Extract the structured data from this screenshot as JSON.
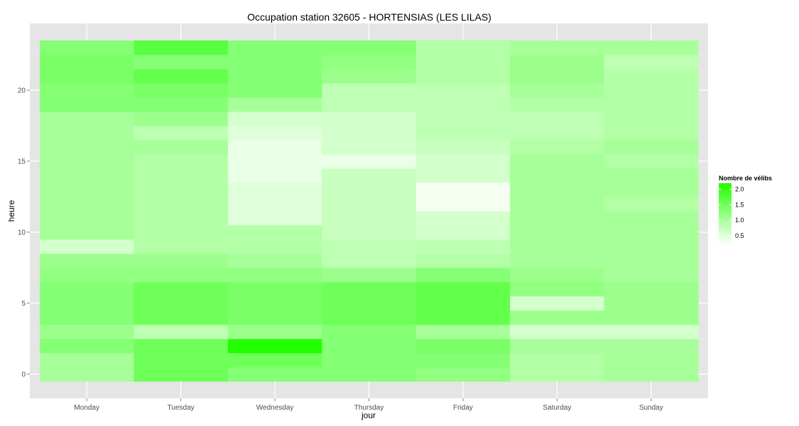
{
  "chart_data": {
    "type": "heatmap",
    "title": "Occupation station 32605 - HORTENSIAS (LES LILAS)",
    "xlabel": "jour",
    "ylabel": "heure",
    "x_categories": [
      "Monday",
      "Tuesday",
      "Wednesday",
      "Thursday",
      "Friday",
      "Saturday",
      "Sunday"
    ],
    "y_ticks": [
      0,
      5,
      10,
      15,
      20
    ],
    "y_range": [
      -0.5,
      23.5
    ],
    "grid": true,
    "legend": {
      "title": "Nombre de vélibs",
      "placement": "right",
      "ticks": [
        0.5,
        1.0,
        1.5,
        2.0
      ],
      "tick_labels": [
        "0.5",
        "1.0",
        "1.5",
        "2.0"
      ],
      "range": [
        0.2,
        2.2
      ],
      "color_low": "#ffffff",
      "color_high": "#22ff00"
    },
    "panel_background": "#e5e5e5",
    "values": [
      [
        1.0,
        1.5,
        1.3,
        1.3,
        1.2,
        0.9,
        1.0
      ],
      [
        1.0,
        1.5,
        1.5,
        1.3,
        1.3,
        0.9,
        1.0
      ],
      [
        1.3,
        1.5,
        2.2,
        1.3,
        1.4,
        1.0,
        1.0
      ],
      [
        1.1,
        0.8,
        1.1,
        1.3,
        1.0,
        0.6,
        0.6
      ],
      [
        1.3,
        1.5,
        1.4,
        1.5,
        1.6,
        1.1,
        1.1
      ],
      [
        1.3,
        1.5,
        1.4,
        1.5,
        1.6,
        0.6,
        1.1
      ],
      [
        1.3,
        1.5,
        1.4,
        1.5,
        1.6,
        1.2,
        1.1
      ],
      [
        1.2,
        1.2,
        1.2,
        1.1,
        1.3,
        1.1,
        1.0
      ],
      [
        1.1,
        1.1,
        1.0,
        0.8,
        0.9,
        1.0,
        1.0
      ],
      [
        0.6,
        0.9,
        0.9,
        0.8,
        0.8,
        1.0,
        1.0
      ],
      [
        1.0,
        0.9,
        0.9,
        0.7,
        0.6,
        1.0,
        1.0
      ],
      [
        1.0,
        0.9,
        0.5,
        0.7,
        0.6,
        1.0,
        1.0
      ],
      [
        1.0,
        0.9,
        0.5,
        0.7,
        0.3,
        1.0,
        0.9
      ],
      [
        1.0,
        0.9,
        0.5,
        0.7,
        0.3,
        1.0,
        1.0
      ],
      [
        1.0,
        0.9,
        0.4,
        0.7,
        0.6,
        1.0,
        1.0
      ],
      [
        1.0,
        0.9,
        0.4,
        0.4,
        0.6,
        1.0,
        0.9
      ],
      [
        1.0,
        1.0,
        0.4,
        0.6,
        0.7,
        0.9,
        1.0
      ],
      [
        1.0,
        0.8,
        0.5,
        0.6,
        0.8,
        0.8,
        0.9
      ],
      [
        1.0,
        1.1,
        0.6,
        0.6,
        0.8,
        0.8,
        0.9
      ],
      [
        1.3,
        1.3,
        1.0,
        0.8,
        0.8,
        0.9,
        0.9
      ],
      [
        1.3,
        1.4,
        1.3,
        0.8,
        0.8,
        1.0,
        0.9
      ],
      [
        1.4,
        1.6,
        1.3,
        1.1,
        0.9,
        1.1,
        0.9
      ],
      [
        1.4,
        1.3,
        1.3,
        1.2,
        0.9,
        1.1,
        0.8
      ],
      [
        1.3,
        1.7,
        1.3,
        1.3,
        0.9,
        1.0,
        1.0
      ]
    ]
  }
}
